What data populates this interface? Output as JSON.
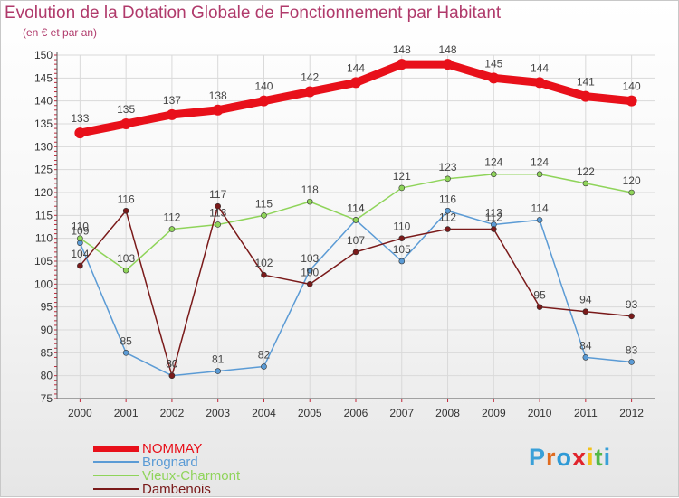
{
  "title": "Evolution de la Dotation Globale de Fonctionnement par Habitant",
  "subtitle": "(en € et par an)",
  "logo": "Proxiti",
  "logo_colors": [
    "#3aa0d8",
    "#e06b1f",
    "#2f9ad6",
    "#e0242c",
    "#f2c21a",
    "#53b848",
    "#3aa0d8"
  ],
  "chart_data": {
    "type": "line",
    "title": "Evolution de la Dotation Globale de Fonctionnement par Habitant",
    "subtitle": "(en € et par an)",
    "x": [
      "2000",
      "2001",
      "2002",
      "2003",
      "2004",
      "2005",
      "2006",
      "2007",
      "2008",
      "2009",
      "2010",
      "2011",
      "2012"
    ],
    "ylim": [
      75,
      150
    ],
    "yticks": [
      75,
      80,
      85,
      90,
      95,
      100,
      105,
      110,
      115,
      120,
      125,
      130,
      135,
      140,
      145,
      150
    ],
    "grid": true,
    "series": [
      {
        "name": "NOMMAY",
        "color": "#e8101a",
        "values": [
          133,
          135,
          137,
          138,
          140,
          142,
          144,
          148,
          148,
          145,
          144,
          141,
          140
        ]
      },
      {
        "name": "Brognard",
        "color": "#5b9bd5",
        "values": [
          109,
          85,
          80,
          81,
          82,
          103,
          114,
          105,
          116,
          113,
          114,
          84,
          83
        ]
      },
      {
        "name": "Vieux-Charmont",
        "color": "#8fd45a",
        "values": [
          110,
          103,
          112,
          113,
          115,
          118,
          114,
          121,
          123,
          124,
          124,
          122,
          120
        ]
      },
      {
        "name": "Dambenois",
        "color": "#7a1a1a",
        "values": [
          104,
          116,
          80,
          117,
          102,
          100,
          107,
          110,
          112,
          112,
          95,
          94,
          93
        ]
      }
    ]
  }
}
